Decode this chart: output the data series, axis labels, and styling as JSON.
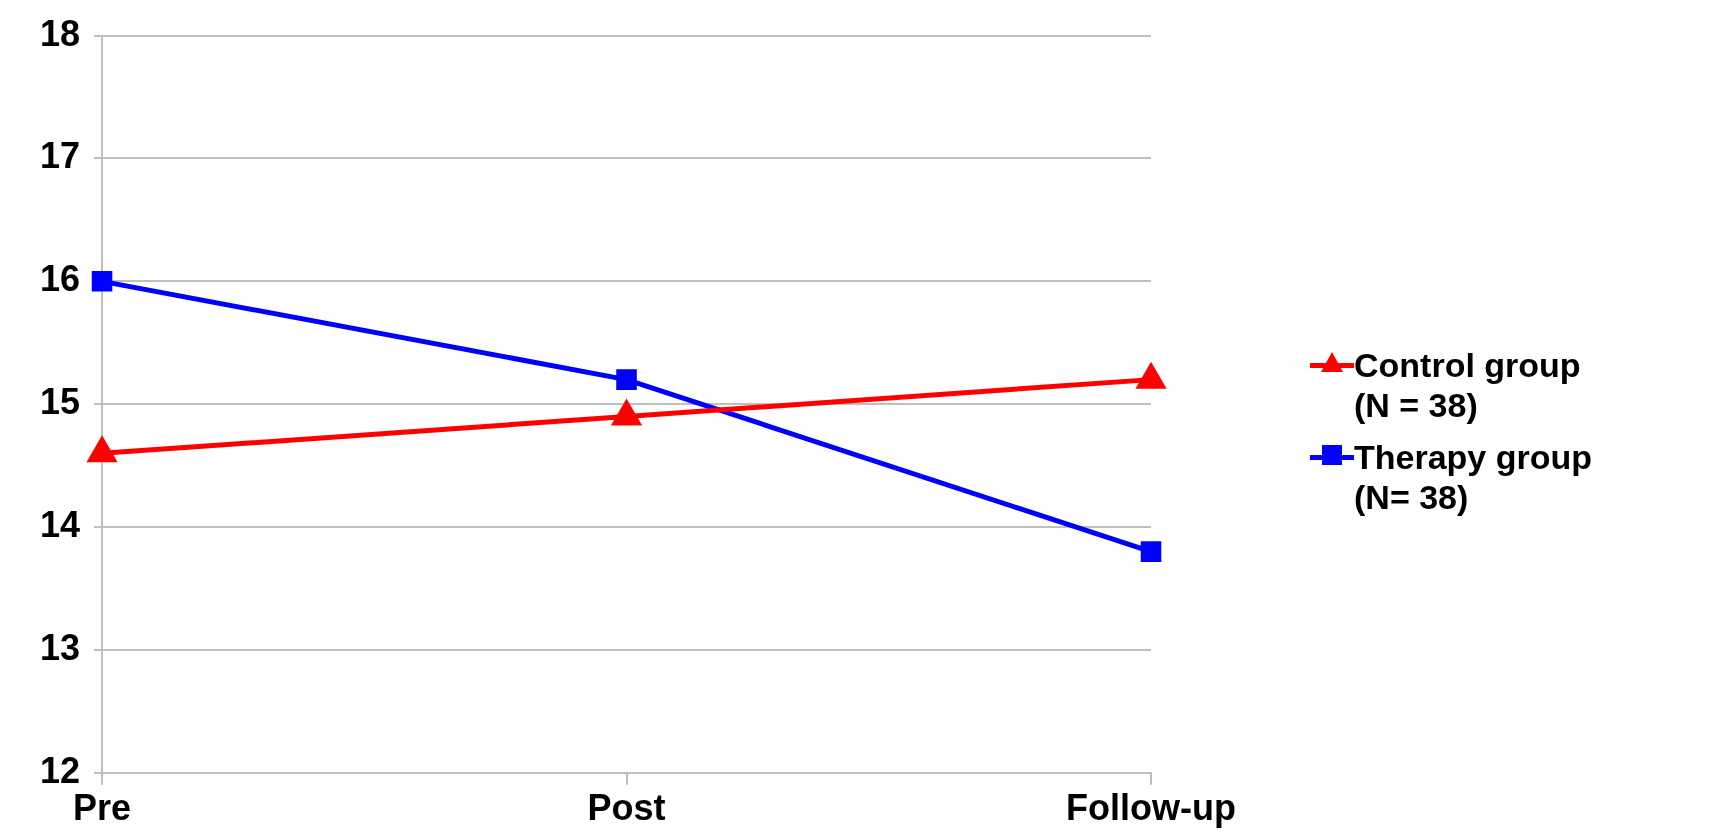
{
  "chart_data": {
    "type": "line",
    "categories": [
      "Pre",
      "Post",
      "Follow-up"
    ],
    "series": [
      {
        "name": "Control group (N = 38)",
        "color": "#ff0000",
        "marker": "triangle",
        "values": [
          14.6,
          14.9,
          15.2
        ]
      },
      {
        "name": "Therapy group (N= 38)",
        "color": "#0000ff",
        "marker": "square",
        "values": [
          16.0,
          15.2,
          13.8
        ]
      }
    ],
    "ylim": [
      12,
      18
    ],
    "yticks": [
      12,
      13,
      14,
      15,
      16,
      17,
      18
    ],
    "grid": "y",
    "legend": "right",
    "line_style": "solid"
  }
}
